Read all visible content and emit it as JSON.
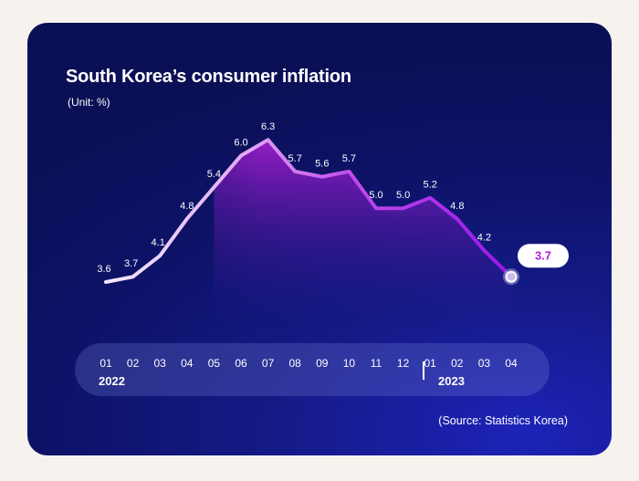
{
  "chart_data": {
    "type": "line",
    "title": "South Korea’s consumer inflation",
    "subtitle": "(Unit: %)",
    "source": "(Source: Statistics Korea)",
    "categories": [
      "01",
      "02",
      "03",
      "04",
      "05",
      "06",
      "07",
      "08",
      "09",
      "10",
      "11",
      "12",
      "01",
      "02",
      "03",
      "04"
    ],
    "year_labels": [
      {
        "label": "2022",
        "start_index": 0
      },
      {
        "label": "2023",
        "start_index": 12
      }
    ],
    "values": [
      3.6,
      3.7,
      4.1,
      4.8,
      5.4,
      6.0,
      6.3,
      5.7,
      5.6,
      5.7,
      5.0,
      5.0,
      5.2,
      4.8,
      4.2,
      3.7
    ],
    "value_labels": [
      "3.6",
      "3.7",
      "4.1",
      "4.8",
      "5.4",
      "6.0",
      "6.3",
      "5.7",
      "5.6",
      "5.7",
      "5.0",
      "5.0",
      "5.2",
      "4.8",
      "4.2",
      "3.7"
    ],
    "highlight": {
      "index": 15,
      "label": "3.7"
    },
    "colors": {
      "background": "#0d1266",
      "line_start": "#f3eaff",
      "line_end": "#a21cf0",
      "highlight_text": "#b31bd8"
    }
  }
}
